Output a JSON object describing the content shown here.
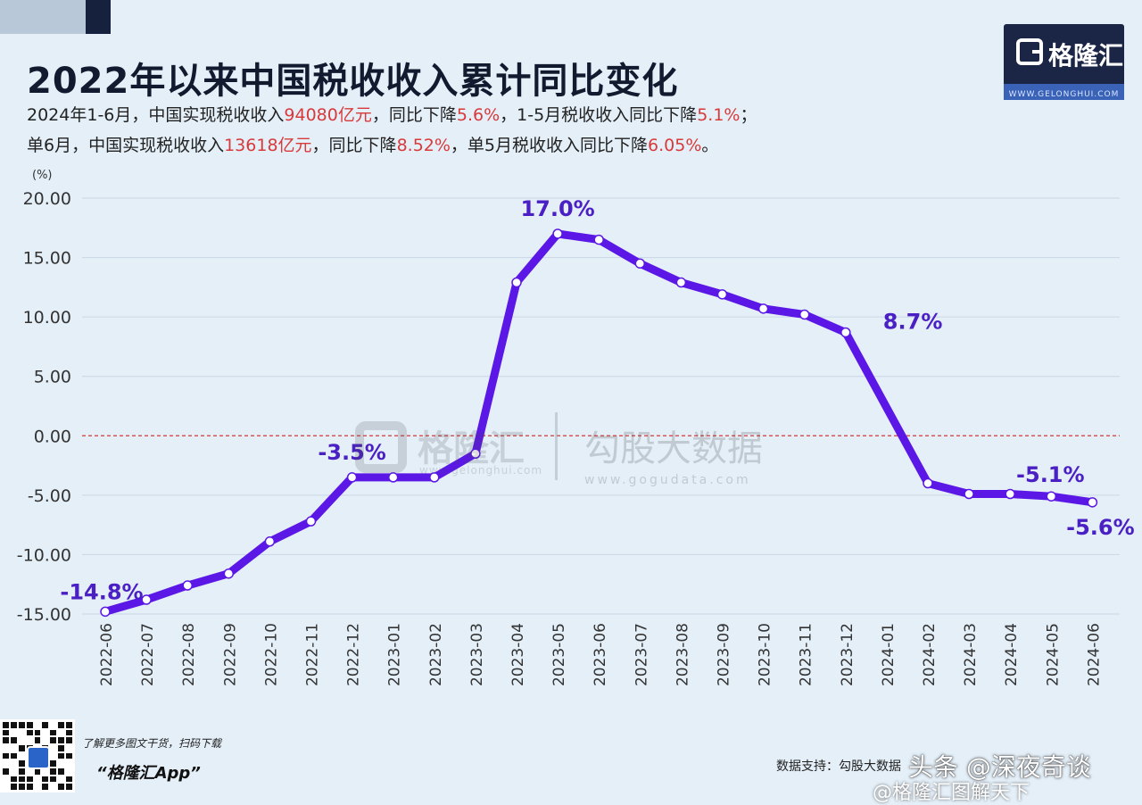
{
  "header": {
    "title": "2022年以来中国税收收入累计同比变化",
    "line1": {
      "p1": "2024年1-6月，中国实现税收收入",
      "h1": "94080亿元",
      "p2": "，同比下降",
      "h2": "5.6%",
      "p3": "，1-5月税收收入同比下降",
      "h3": "5.1%",
      "p4": "；"
    },
    "line2": {
      "p1": "单6月，中国实现税收收入",
      "h1": "13618亿元",
      "p2": "，同比下降",
      "h2": "8.52%",
      "p3": "，单5月税收收入同比下降",
      "h3": "6.05%",
      "p4": "。"
    }
  },
  "logo": {
    "text": "格隆汇",
    "url": "WWW.GELONGHUI.COM"
  },
  "watermark": {
    "brand": "格隆汇",
    "brand_url": "www.gelonghui.com",
    "data_brand": "勾股大数据",
    "data_url": "www.gogudata.com"
  },
  "footer": {
    "promo": "了解更多图文干货，扫码下载",
    "app_name": "“格隆汇App”",
    "data_support": "数据支持：勾股大数据",
    "toutiao": "头条 @深夜奇谈",
    "weibo": "@格隆汇图解天下"
  },
  "colors": {
    "line": "#5b17e6",
    "label": "#4a1fc4",
    "zero_line": "#d43a3a",
    "grid": "#c9d6e4",
    "highlight": "#d83a3a"
  },
  "chart_data": {
    "type": "line",
    "title": "2022年以来中国税收收入累计同比变化",
    "ylabel": "(%)",
    "xlabel": "",
    "ylim": [
      -15,
      20
    ],
    "yticks": [
      20,
      15,
      10,
      5,
      0,
      -5,
      -10,
      -15
    ],
    "ytick_labels": [
      "20.00",
      "15.00",
      "10.00",
      "5.00",
      "0.00",
      "-5.00",
      "-10.00",
      "-15.00"
    ],
    "categories": [
      "2022-06",
      "2022-07",
      "2022-08",
      "2022-09",
      "2022-10",
      "2022-11",
      "2022-12",
      "2023-01",
      "2023-02",
      "2023-03",
      "2023-04",
      "2023-05",
      "2023-06",
      "2023-07",
      "2023-08",
      "2023-09",
      "2023-10",
      "2023-11",
      "2023-12",
      "2024-01",
      "2024-02",
      "2024-03",
      "2024-04",
      "2024-05",
      "2024-06"
    ],
    "series": [
      {
        "name": "税收收入累计同比",
        "values": [
          -14.8,
          -13.8,
          -12.6,
          -11.6,
          -8.9,
          -7.2,
          -3.5,
          -3.5,
          -3.5,
          -1.5,
          12.9,
          17.0,
          16.5,
          14.5,
          12.9,
          11.9,
          10.7,
          10.2,
          8.7,
          null,
          -4.0,
          -4.9,
          -4.9,
          -5.1,
          -5.6
        ]
      }
    ],
    "annotations": [
      {
        "index": 0,
        "text": "-14.8%",
        "pos": "above"
      },
      {
        "index": 6,
        "text": "-3.5%",
        "pos": "above"
      },
      {
        "index": 11,
        "text": "17.0%",
        "pos": "above"
      },
      {
        "index": 18,
        "text": "8.7%",
        "pos": "right"
      },
      {
        "index": 23,
        "text": "-5.1%",
        "pos": "above"
      },
      {
        "index": 24,
        "text": "-5.6%",
        "pos": "below"
      }
    ],
    "zero_line": true,
    "grid": true
  }
}
